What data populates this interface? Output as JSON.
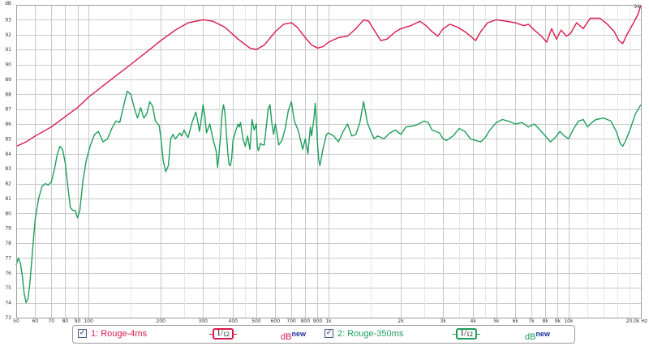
{
  "chart_data": {
    "type": "line",
    "xscale": "log",
    "xlim": [
      50,
      20000
    ],
    "ylim": [
      73,
      94
    ],
    "ylabel": "dB",
    "xlabel": "Hz",
    "grid": true,
    "x_ticks": [
      {
        "value": 50,
        "label": "50"
      },
      {
        "value": 60,
        "label": "60"
      },
      {
        "value": 70,
        "label": "70"
      },
      {
        "value": 80,
        "label": "80"
      },
      {
        "value": 90,
        "label": "90"
      },
      {
        "value": 100,
        "label": "100"
      },
      {
        "value": 200,
        "label": "200"
      },
      {
        "value": 300,
        "label": "300"
      },
      {
        "value": 400,
        "label": "400"
      },
      {
        "value": 500,
        "label": "500"
      },
      {
        "value": 600,
        "label": "600"
      },
      {
        "value": 700,
        "label": "700"
      },
      {
        "value": 800,
        "label": "800"
      },
      {
        "value": 900,
        "label": "900"
      },
      {
        "value": 1000,
        "label": "1k"
      },
      {
        "value": 2000,
        "label": "2k"
      },
      {
        "value": 3000,
        "label": "3k"
      },
      {
        "value": 4000,
        "label": "4k"
      },
      {
        "value": 5000,
        "label": "5k"
      },
      {
        "value": 6000,
        "label": "6k"
      },
      {
        "value": 7000,
        "label": "7k"
      },
      {
        "value": 8000,
        "label": "8k"
      },
      {
        "value": 9000,
        "label": "9k"
      },
      {
        "value": 10000,
        "label": "10k"
      },
      {
        "value": 20000,
        "label": "20,0k Hz"
      }
    ],
    "x_minor": [
      150,
      250,
      350,
      450,
      1500,
      2500,
      3500,
      4500,
      12000,
      14000,
      16000,
      18000
    ],
    "y_ticks": [
      73,
      74,
      75,
      76,
      77,
      78,
      79,
      80,
      81,
      82,
      83,
      84,
      85,
      86,
      87,
      88,
      89,
      90,
      91,
      92,
      93,
      94
    ],
    "y_top_label": "dB",
    "series": [
      {
        "name": "1: Rouge-4ms",
        "color": "#d9184b",
        "points": [
          [
            50,
            84.5
          ],
          [
            55,
            84.8
          ],
          [
            60,
            85.2
          ],
          [
            70,
            85.8
          ],
          [
            80,
            86.5
          ],
          [
            90,
            87.1
          ],
          [
            100,
            87.8
          ],
          [
            120,
            88.8
          ],
          [
            150,
            90.0
          ],
          [
            180,
            91.0
          ],
          [
            200,
            91.6
          ],
          [
            230,
            92.3
          ],
          [
            260,
            92.8
          ],
          [
            300,
            93.0
          ],
          [
            330,
            92.9
          ],
          [
            370,
            92.5
          ],
          [
            420,
            91.7
          ],
          [
            470,
            91.1
          ],
          [
            500,
            91.0
          ],
          [
            540,
            91.3
          ],
          [
            600,
            92.2
          ],
          [
            650,
            92.7
          ],
          [
            700,
            92.8
          ],
          [
            740,
            92.5
          ],
          [
            800,
            91.8
          ],
          [
            850,
            91.3
          ],
          [
            900,
            91.1
          ],
          [
            950,
            91.2
          ],
          [
            1000,
            91.5
          ],
          [
            1100,
            91.8
          ],
          [
            1200,
            91.9
          ],
          [
            1300,
            92.4
          ],
          [
            1400,
            93.0
          ],
          [
            1470,
            92.9
          ],
          [
            1550,
            92.3
          ],
          [
            1650,
            91.6
          ],
          [
            1750,
            91.7
          ],
          [
            1900,
            92.2
          ],
          [
            2000,
            92.4
          ],
          [
            2200,
            92.6
          ],
          [
            2400,
            92.9
          ],
          [
            2550,
            92.6
          ],
          [
            2700,
            92.2
          ],
          [
            2850,
            91.9
          ],
          [
            3000,
            92.4
          ],
          [
            3200,
            92.7
          ],
          [
            3450,
            92.5
          ],
          [
            3700,
            92.2
          ],
          [
            3900,
            91.9
          ],
          [
            4100,
            91.6
          ],
          [
            4300,
            92.2
          ],
          [
            4600,
            92.8
          ],
          [
            5000,
            93.0
          ],
          [
            5500,
            92.9
          ],
          [
            6000,
            92.8
          ],
          [
            6500,
            92.6
          ],
          [
            6800,
            92.7
          ],
          [
            7200,
            92.3
          ],
          [
            7700,
            91.9
          ],
          [
            8100,
            91.5
          ],
          [
            8500,
            92.4
          ],
          [
            8900,
            91.7
          ],
          [
            9300,
            92.3
          ],
          [
            9800,
            91.9
          ],
          [
            10200,
            92.1
          ],
          [
            10800,
            92.8
          ],
          [
            11500,
            92.4
          ],
          [
            12300,
            93.1
          ],
          [
            13500,
            93.1
          ],
          [
            14500,
            92.7
          ],
          [
            15500,
            92.2
          ],
          [
            16200,
            91.6
          ],
          [
            16800,
            91.4
          ],
          [
            17500,
            92.0
          ],
          [
            18500,
            92.7
          ],
          [
            19500,
            93.4
          ],
          [
            20000,
            94.0
          ]
        ]
      },
      {
        "name": "2: Rouge-350ms",
        "color": "#1f9e5b",
        "points": [
          [
            50,
            76.5
          ],
          [
            51,
            77.0
          ],
          [
            52,
            76.7
          ],
          [
            53,
            75.8
          ],
          [
            54,
            74.6
          ],
          [
            55,
            74.0
          ],
          [
            56,
            74.3
          ],
          [
            57,
            75.3
          ],
          [
            58,
            76.8
          ],
          [
            59,
            78.3
          ],
          [
            60,
            79.6
          ],
          [
            62,
            81.0
          ],
          [
            64,
            81.8
          ],
          [
            66,
            82.0
          ],
          [
            68,
            81.9
          ],
          [
            70,
            82.1
          ],
          [
            72,
            82.9
          ],
          [
            74,
            83.9
          ],
          [
            76,
            84.5
          ],
          [
            78,
            84.3
          ],
          [
            80,
            83.4
          ],
          [
            82,
            81.8
          ],
          [
            84,
            80.4
          ],
          [
            86,
            80.2
          ],
          [
            88,
            80.2
          ],
          [
            90,
            79.7
          ],
          [
            92,
            80.2
          ],
          [
            95,
            82.3
          ],
          [
            98,
            83.6
          ],
          [
            102,
            84.6
          ],
          [
            106,
            85.3
          ],
          [
            110,
            85.5
          ],
          [
            115,
            84.8
          ],
          [
            120,
            85.0
          ],
          [
            125,
            85.7
          ],
          [
            130,
            86.2
          ],
          [
            135,
            86.1
          ],
          [
            140,
            87.2
          ],
          [
            145,
            88.2
          ],
          [
            150,
            88.0
          ],
          [
            155,
            87.1
          ],
          [
            160,
            86.4
          ],
          [
            165,
            87.1
          ],
          [
            170,
            86.4
          ],
          [
            175,
            86.7
          ],
          [
            180,
            87.5
          ],
          [
            185,
            87.2
          ],
          [
            190,
            86.2
          ],
          [
            197,
            85.9
          ],
          [
            200,
            85.1
          ],
          [
            205,
            83.5
          ],
          [
            210,
            82.8
          ],
          [
            215,
            83.2
          ],
          [
            220,
            85.0
          ],
          [
            225,
            85.3
          ],
          [
            230,
            85.0
          ],
          [
            235,
            85.2
          ],
          [
            240,
            85.4
          ],
          [
            245,
            85.2
          ],
          [
            250,
            85.6
          ],
          [
            255,
            85.3
          ],
          [
            260,
            85.1
          ],
          [
            270,
            86.1
          ],
          [
            280,
            86.8
          ],
          [
            285,
            86.2
          ],
          [
            290,
            85.5
          ],
          [
            295,
            86.3
          ],
          [
            300,
            87.3
          ],
          [
            305,
            86.6
          ],
          [
            310,
            85.4
          ],
          [
            320,
            86.0
          ],
          [
            330,
            85.0
          ],
          [
            340,
            84.2
          ],
          [
            345,
            83.1
          ],
          [
            350,
            84.1
          ],
          [
            355,
            85.2
          ],
          [
            360,
            86.7
          ],
          [
            365,
            87.3
          ],
          [
            370,
            86.8
          ],
          [
            375,
            85.5
          ],
          [
            380,
            84.2
          ],
          [
            385,
            83.3
          ],
          [
            390,
            83.2
          ],
          [
            395,
            83.7
          ],
          [
            400,
            84.9
          ],
          [
            410,
            85.5
          ],
          [
            420,
            86.0
          ],
          [
            425,
            85.8
          ],
          [
            430,
            86.1
          ],
          [
            440,
            85.0
          ],
          [
            450,
            84.5
          ],
          [
            460,
            85.2
          ],
          [
            470,
            84.3
          ],
          [
            480,
            86.3
          ],
          [
            490,
            85.6
          ],
          [
            500,
            86.0
          ],
          [
            505,
            84.5
          ],
          [
            510,
            84.2
          ],
          [
            520,
            84.7
          ],
          [
            530,
            84.6
          ],
          [
            540,
            84.6
          ],
          [
            550,
            85.8
          ],
          [
            560,
            87.0
          ],
          [
            570,
            87.3
          ],
          [
            580,
            86.1
          ],
          [
            590,
            85.3
          ],
          [
            600,
            86.0
          ],
          [
            610,
            85.4
          ],
          [
            620,
            84.6
          ],
          [
            640,
            84.9
          ],
          [
            660,
            85.7
          ],
          [
            680,
            86.9
          ],
          [
            700,
            87.5
          ],
          [
            720,
            86.2
          ],
          [
            750,
            85.5
          ],
          [
            780,
            84.3
          ],
          [
            800,
            85.0
          ],
          [
            820,
            84.0
          ],
          [
            840,
            85.8
          ],
          [
            850,
            85.2
          ],
          [
            870,
            86.4
          ],
          [
            880,
            87.4
          ],
          [
            890,
            86.2
          ],
          [
            900,
            84.6
          ],
          [
            910,
            83.6
          ],
          [
            920,
            83.2
          ],
          [
            930,
            83.6
          ],
          [
            950,
            84.4
          ],
          [
            980,
            85.3
          ],
          [
            1000,
            85.4
          ],
          [
            1050,
            85.2
          ],
          [
            1100,
            84.8
          ],
          [
            1150,
            85.5
          ],
          [
            1200,
            86.0
          ],
          [
            1250,
            85.2
          ],
          [
            1300,
            85.3
          ],
          [
            1350,
            86.1
          ],
          [
            1400,
            87.5
          ],
          [
            1450,
            86.1
          ],
          [
            1500,
            85.5
          ],
          [
            1550,
            85.0
          ],
          [
            1600,
            85.2
          ],
          [
            1700,
            85.0
          ],
          [
            1800,
            85.4
          ],
          [
            1900,
            85.6
          ],
          [
            2000,
            85.3
          ],
          [
            2100,
            85.8
          ],
          [
            2300,
            85.9
          ],
          [
            2500,
            86.2
          ],
          [
            2600,
            86.1
          ],
          [
            2700,
            85.6
          ],
          [
            2900,
            85.4
          ],
          [
            3000,
            85.0
          ],
          [
            3100,
            84.9
          ],
          [
            3300,
            85.2
          ],
          [
            3500,
            85.7
          ],
          [
            3700,
            85.5
          ],
          [
            3900,
            85.0
          ],
          [
            4100,
            84.9
          ],
          [
            4300,
            84.8
          ],
          [
            4500,
            85.1
          ],
          [
            4700,
            85.6
          ],
          [
            5000,
            86.1
          ],
          [
            5300,
            86.3
          ],
          [
            5600,
            86.2
          ],
          [
            6000,
            86.0
          ],
          [
            6400,
            86.1
          ],
          [
            6800,
            85.8
          ],
          [
            7200,
            86.0
          ],
          [
            7600,
            85.6
          ],
          [
            8000,
            85.2
          ],
          [
            8400,
            84.8
          ],
          [
            8800,
            85.1
          ],
          [
            9200,
            85.5
          ],
          [
            9600,
            85.2
          ],
          [
            10000,
            85.0
          ],
          [
            10500,
            85.7
          ],
          [
            11000,
            86.2
          ],
          [
            11500,
            86.3
          ],
          [
            12000,
            85.8
          ],
          [
            12500,
            86.1
          ],
          [
            13000,
            86.3
          ],
          [
            14000,
            86.4
          ],
          [
            15000,
            86.2
          ],
          [
            15800,
            85.5
          ],
          [
            16400,
            84.7
          ],
          [
            16800,
            84.5
          ],
          [
            17300,
            84.9
          ],
          [
            18000,
            85.6
          ],
          [
            19000,
            86.7
          ],
          [
            20000,
            87.3
          ]
        ]
      }
    ]
  },
  "legend": {
    "entries": [
      {
        "check": "✓",
        "label": "1: Rouge-4ms",
        "smoothing_num": "1",
        "smoothing_den": "12",
        "db": "dB",
        "db_sup": "new"
      },
      {
        "check": "✓",
        "label": "2: Rouge-350ms",
        "smoothing_num": "1",
        "smoothing_den": "12",
        "db": "dB",
        "db_sup": "new"
      }
    ]
  },
  "colors": {
    "series1": "#d9184b",
    "series2": "#1f9e5b",
    "db_blue": "#1a2f9e"
  }
}
